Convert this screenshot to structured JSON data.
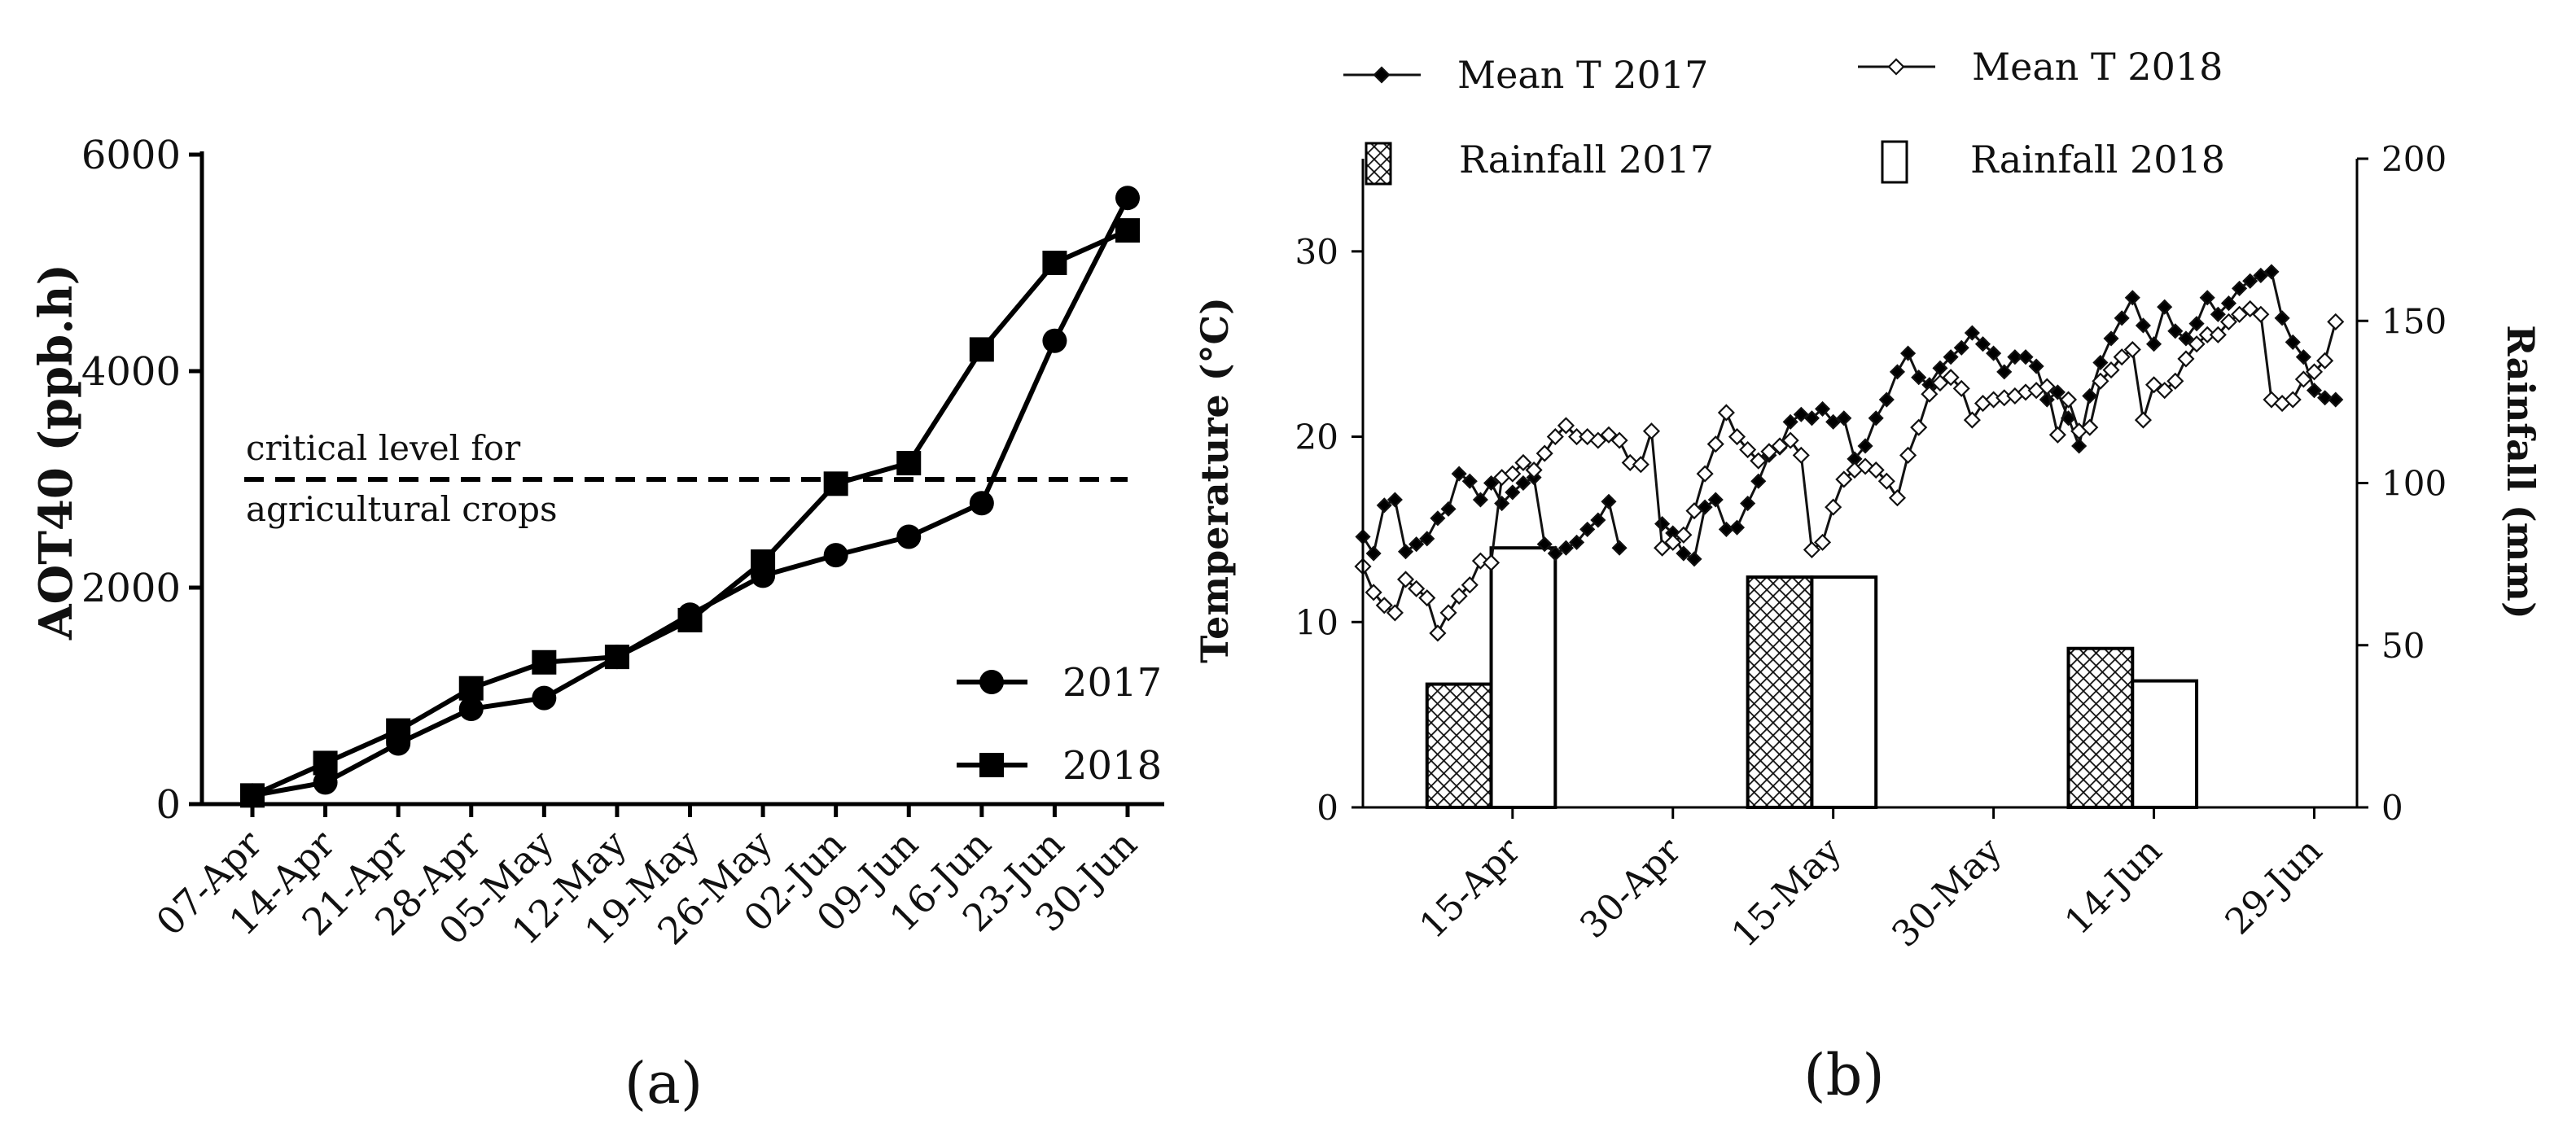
{
  "chart_data": [
    {
      "panel_label": "(a)",
      "type": "line",
      "ylabel": "AOT40  (ppb.h)",
      "ylim": [
        0,
        6000
      ],
      "yticks": [
        "0",
        "2000",
        "4000",
        "6000"
      ],
      "ytick_values": [
        0,
        2000,
        4000,
        6000
      ],
      "categories": [
        "07-Apr",
        "14-Apr",
        "21-Apr",
        "28-Apr",
        "05-May",
        "12-May",
        "19-May",
        "26-May",
        "02-Jun",
        "09-Jun",
        "16-Jun",
        "23-Jun",
        "30-Jun"
      ],
      "series": [
        {
          "name": "2017",
          "marker": "circle",
          "values": [
            80,
            200,
            560,
            880,
            980,
            1360,
            1750,
            2110,
            2300,
            2470,
            2780,
            4280,
            5600
          ]
        },
        {
          "name": "2018",
          "marker": "square",
          "values": [
            80,
            380,
            680,
            1070,
            1310,
            1360,
            1700,
            2240,
            2960,
            3150,
            4200,
            5000,
            5300
          ]
        }
      ],
      "reference_line": {
        "value": 3000,
        "label_line1": "critical level for",
        "label_line2": "agricultural crops"
      },
      "legend_position": "bottom-right"
    },
    {
      "panel_label": "(b)",
      "type": "line+bar",
      "ylabel_left": "Temperature (°C)",
      "ylabel_right": "Rainfall  (mm)",
      "ylim_left": [
        0,
        35
      ],
      "ylim_right": [
        0,
        200
      ],
      "yticks_left": [
        "0",
        "10",
        "20",
        "30"
      ],
      "ytick_values_left": [
        0,
        10,
        20,
        30
      ],
      "yticks_right": [
        "0",
        "50",
        "100",
        "150",
        "200"
      ],
      "ytick_values_right": [
        0,
        50,
        100,
        150,
        200
      ],
      "x_range_day_of_year": [
        91,
        184
      ],
      "xticks": [
        "15-Apr",
        "30-Apr",
        "15-May",
        "30-May",
        "14-Jun",
        "29-Jun"
      ],
      "xtick_values": [
        105,
        120,
        135,
        150,
        165,
        180
      ],
      "legend_position": "top",
      "temperature_series": [
        {
          "name": "Mean T 2017",
          "marker": "filled-diamond",
          "start_day_of_year": 91,
          "values": [
            14.6,
            13.7,
            16.3,
            16.6,
            13.8,
            14.2,
            14.5,
            15.6,
            16.1,
            18.0,
            17.6,
            16.6,
            17.5,
            16.4,
            17.0,
            17.5,
            17.8,
            14.2,
            13.7,
            14.0,
            14.3,
            15.0,
            15.5,
            16.5,
            14.0,
            null,
            null,
            null,
            15.3,
            14.8,
            13.7,
            13.4,
            16.2,
            16.6,
            15.0,
            15.1,
            16.4,
            17.6,
            19.0,
            19.4,
            20.8,
            21.2,
            21.0,
            21.5,
            20.8,
            21.0,
            18.8,
            19.5,
            21.0,
            22.0,
            23.5,
            24.5,
            23.2,
            22.8,
            23.7,
            24.3,
            24.8,
            25.6,
            25.0,
            24.5,
            23.5,
            24.3,
            24.3,
            23.8,
            22.0,
            22.4,
            21.0,
            19.5,
            22.2,
            24.0,
            25.3,
            26.4,
            27.5,
            26.0,
            25.0,
            27.0,
            25.7,
            25.3,
            26.1,
            27.5,
            26.6,
            27.2,
            28.0,
            28.4,
            28.7,
            28.9,
            26.4,
            25.1,
            24.3,
            22.5,
            22.1,
            22.0
          ]
        },
        {
          "name": "Mean T 2018",
          "marker": "open-diamond",
          "start_day_of_year": 91,
          "values": [
            13.0,
            11.6,
            10.9,
            10.5,
            12.3,
            11.8,
            11.3,
            9.4,
            10.5,
            11.4,
            12.0,
            13.3,
            13.2,
            17.8,
            18.0,
            18.6,
            18.2,
            19.1,
            20.0,
            20.6,
            20.0,
            20.0,
            19.8,
            20.1,
            19.8,
            18.6,
            18.5,
            20.3,
            14.0,
            14.3,
            14.7,
            16.0,
            18.0,
            19.6,
            21.3,
            20.0,
            19.3,
            18.7,
            19.2,
            19.5,
            19.8,
            19.0,
            13.9,
            14.3,
            16.2,
            17.7,
            18.2,
            18.4,
            18.2,
            17.6,
            16.7,
            19.0,
            20.5,
            22.3,
            22.9,
            23.2,
            22.6,
            20.9,
            21.8,
            22.0,
            22.1,
            22.2,
            22.4,
            22.5,
            22.7,
            20.1,
            22.0,
            20.3,
            20.5,
            23.0,
            23.6,
            24.3,
            24.7,
            20.9,
            22.8,
            22.5,
            23.0,
            24.2,
            25.0,
            25.5,
            25.5,
            26.2,
            26.6,
            26.9,
            26.6,
            22.0,
            21.8,
            22.0,
            23.1,
            23.5,
            24.1,
            26.2
          ]
        }
      ],
      "rainfall_series": [
        {
          "name": "Rainfall 2017",
          "pattern": "crosshatch",
          "start_days": [
            97,
            127,
            157
          ],
          "end_days": [
            103,
            133,
            163
          ],
          "values": [
            38,
            71,
            49
          ]
        },
        {
          "name": "Rainfall 2018",
          "pattern": "open",
          "start_days": [
            103,
            133,
            163
          ],
          "end_days": [
            109,
            139,
            169
          ],
          "values": [
            80,
            71,
            39
          ]
        }
      ]
    }
  ]
}
